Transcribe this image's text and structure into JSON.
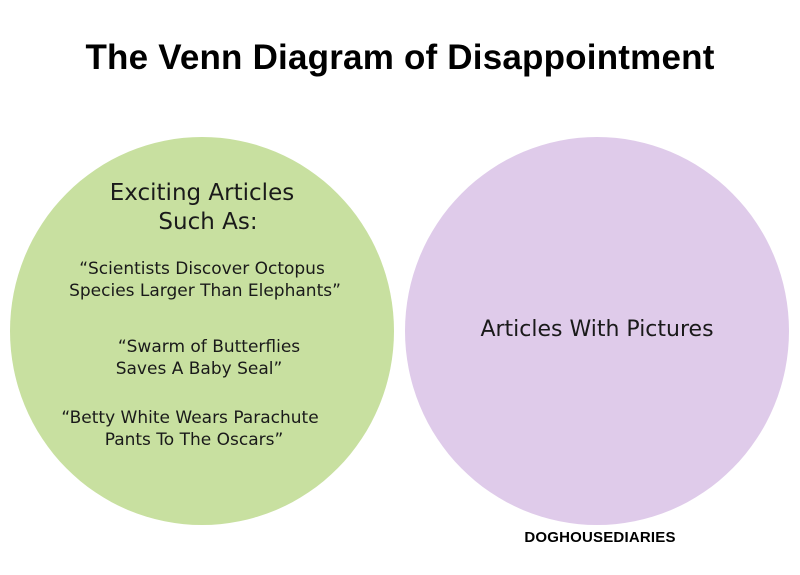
{
  "title": "The Venn Diagram of Disappointment",
  "colors": {
    "left_circle": "#c8e0a0",
    "right_circle": "#dfcbea"
  },
  "left_set": {
    "heading_lines": [
      "Exciting Articles",
      "Such As:"
    ],
    "articles": [
      {
        "lines": [
          "“Scientists Discover Octopus",
          "Species Larger Than Elephants”"
        ]
      },
      {
        "lines": [
          "“Swarm of Butterflies",
          "Saves A Baby Seal”"
        ]
      },
      {
        "lines": [
          "“Betty White Wears Parachute",
          "Pants To The Oscars”"
        ]
      }
    ]
  },
  "right_set": {
    "label": "Articles With Pictures"
  },
  "credit": "DOGHOUSEDIARIES"
}
